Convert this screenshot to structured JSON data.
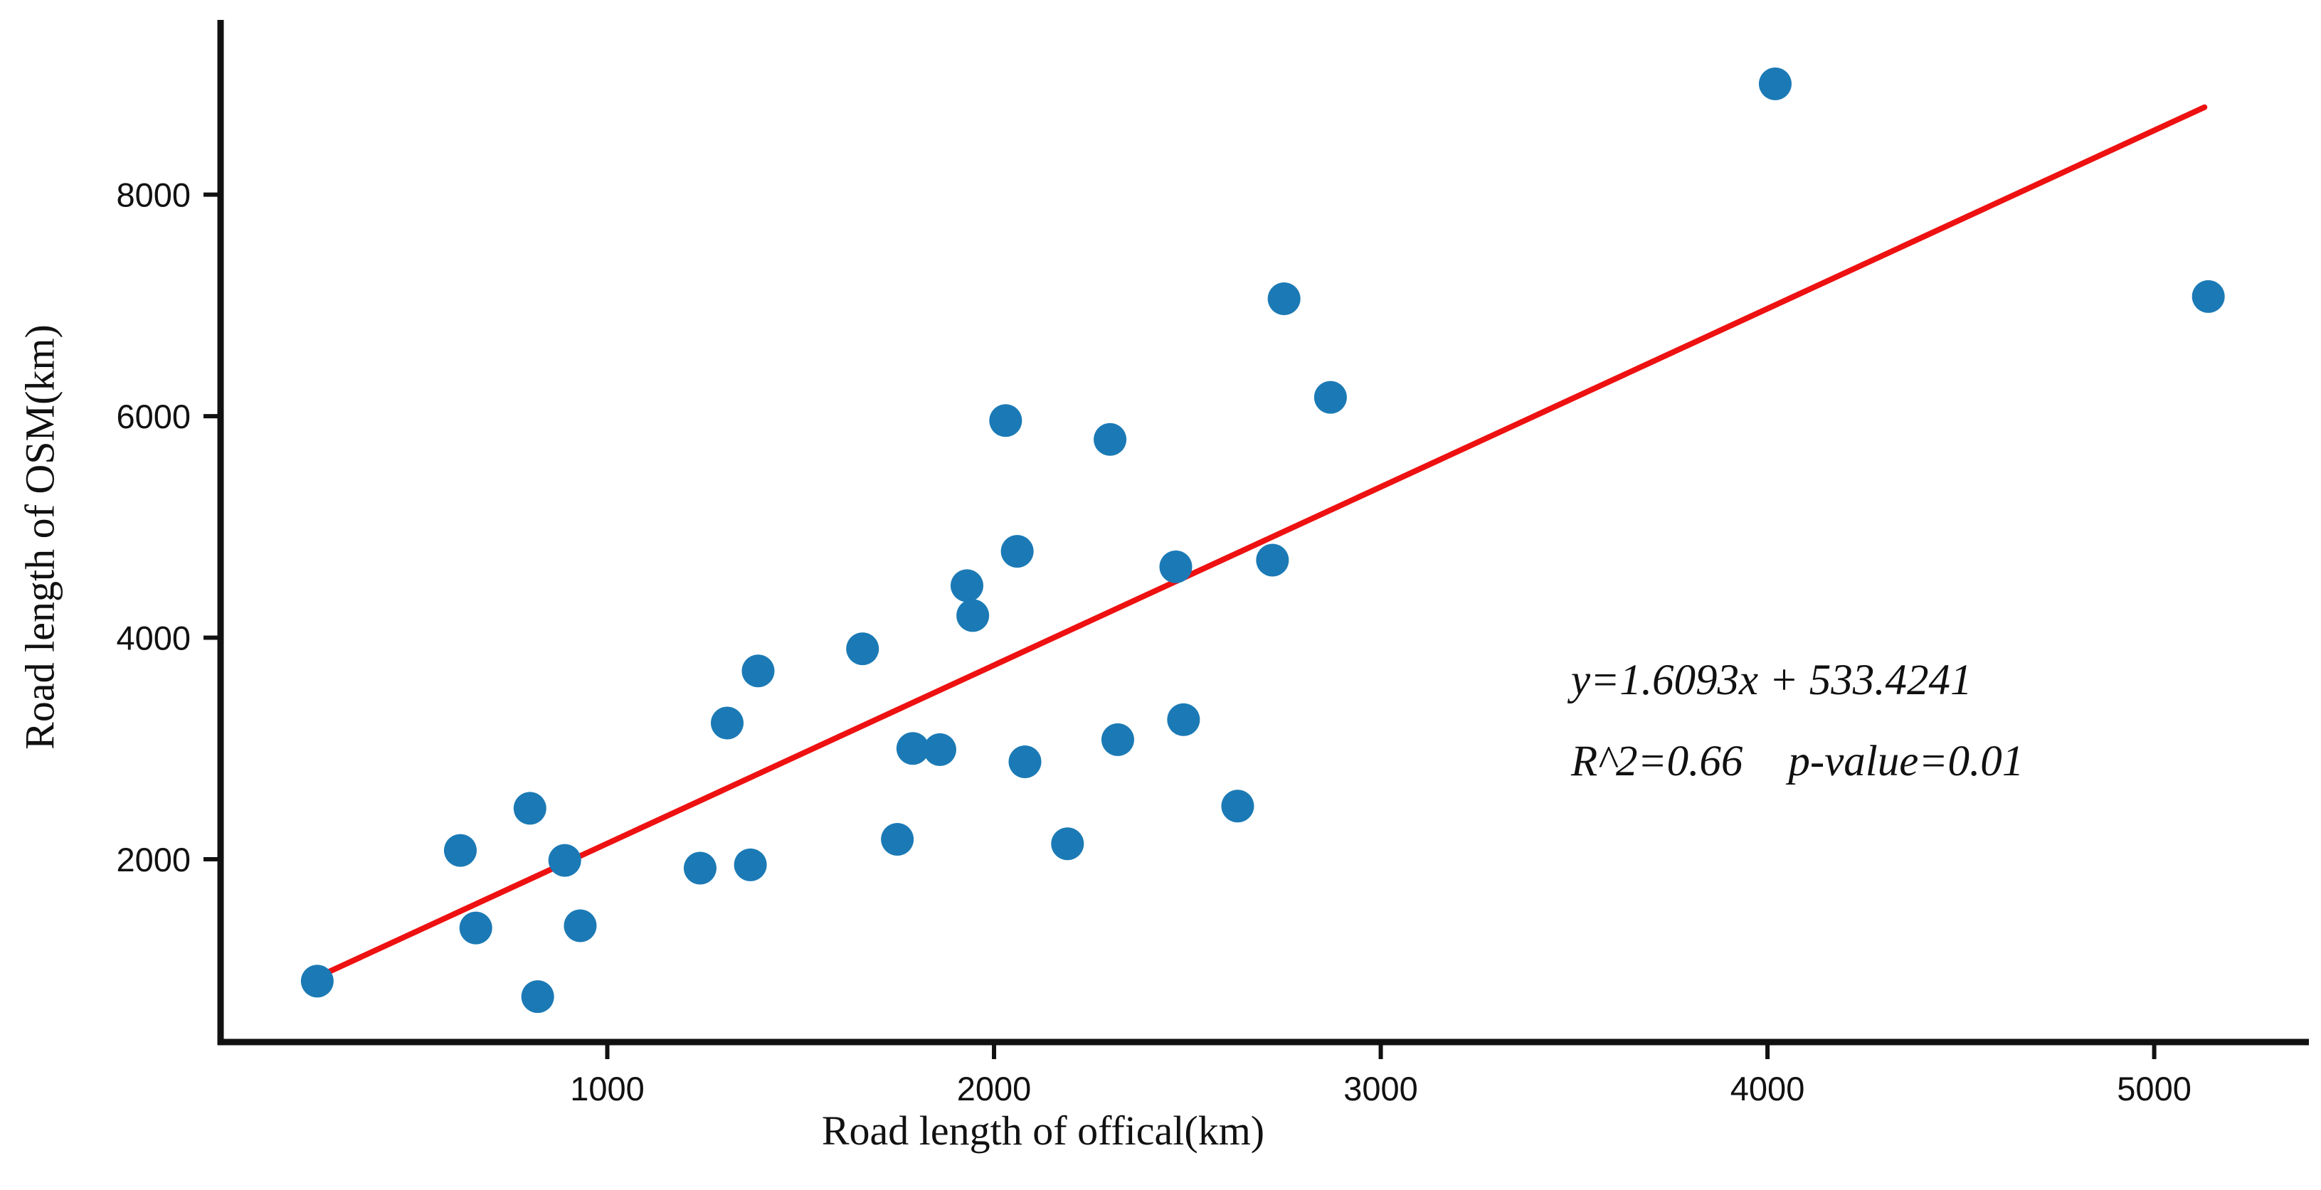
{
  "chart_data": {
    "type": "scatter",
    "title": "",
    "xlabel": "Road length of offical(km)",
    "ylabel": "Road length of OSM(km)",
    "xlim": [
      0,
      5400
    ],
    "ylim": [
      350,
      9500
    ],
    "xticks": [
      "1000",
      "2000",
      "3000",
      "4000",
      "5000"
    ],
    "yticks": [
      "2000",
      "4000",
      "6000",
      "8000"
    ],
    "grid": false,
    "legend": false,
    "points": [
      [
        250,
        900
      ],
      [
        620,
        2080
      ],
      [
        660,
        1380
      ],
      [
        800,
        2460
      ],
      [
        820,
        760
      ],
      [
        890,
        1990
      ],
      [
        930,
        1400
      ],
      [
        1240,
        1920
      ],
      [
        1310,
        3230
      ],
      [
        1370,
        1950
      ],
      [
        1390,
        3700
      ],
      [
        1660,
        3900
      ],
      [
        1750,
        2180
      ],
      [
        1790,
        3000
      ],
      [
        1860,
        2990
      ],
      [
        1930,
        4470
      ],
      [
        1945,
        4200
      ],
      [
        2030,
        5960
      ],
      [
        2060,
        4780
      ],
      [
        2080,
        2880
      ],
      [
        2190,
        2140
      ],
      [
        2300,
        5790
      ],
      [
        2320,
        3080
      ],
      [
        2470,
        4640
      ],
      [
        2490,
        3260
      ],
      [
        2630,
        2480
      ],
      [
        2720,
        4700
      ],
      [
        2750,
        7060
      ],
      [
        2870,
        6170
      ],
      [
        4020,
        9000
      ],
      [
        5140,
        7080
      ]
    ],
    "regression": {
      "slope": 1.6093,
      "intercept": 533.4241,
      "x_start": 220,
      "x_end": 5130
    },
    "marker_radius": 23,
    "colors": {
      "point": "#1b7ab5",
      "line": "#ee1111",
      "axis": "#111111"
    }
  },
  "annotation": {
    "equation": "y=1.6093x + 533.4241",
    "r_squared": "R^2=0.66",
    "p_value": "p-value=0.01"
  }
}
